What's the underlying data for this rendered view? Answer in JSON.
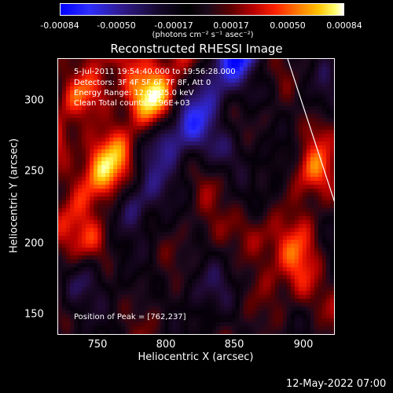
{
  "colorbar": {
    "ticks": [
      "-0.00084",
      "-0.00050",
      "-0.00017",
      "0.00017",
      "0.00050",
      "0.00084"
    ],
    "unit_label": "(photons cm⁻² s⁻¹ asec⁻²)"
  },
  "plot": {
    "title": "Reconstructed RHESSI Image",
    "xlabel": "Heliocentric X (arcsec)",
    "ylabel": "Heliocentric Y (arcsec)",
    "x_ticks": [
      "750",
      "800",
      "850",
      "900"
    ],
    "y_ticks": [
      "300",
      "250",
      "200",
      "150"
    ],
    "info_lines": [
      "5-Jul-2011 19:54:40.000 to 19:56:28.000",
      "Detectors: 3F 4F 5F 6F 7F 8F, Att 0",
      "Energy Range: 12.0 - 25.0 keV",
      "Clean     Total counts: 3.96E+03"
    ],
    "peak_text": "Position of Peak = [762,237]"
  },
  "footer": {
    "timestamp": "12-May-2022 07:00"
  },
  "colors": {
    "background": "#000000",
    "foreground": "#ffffff"
  }
}
